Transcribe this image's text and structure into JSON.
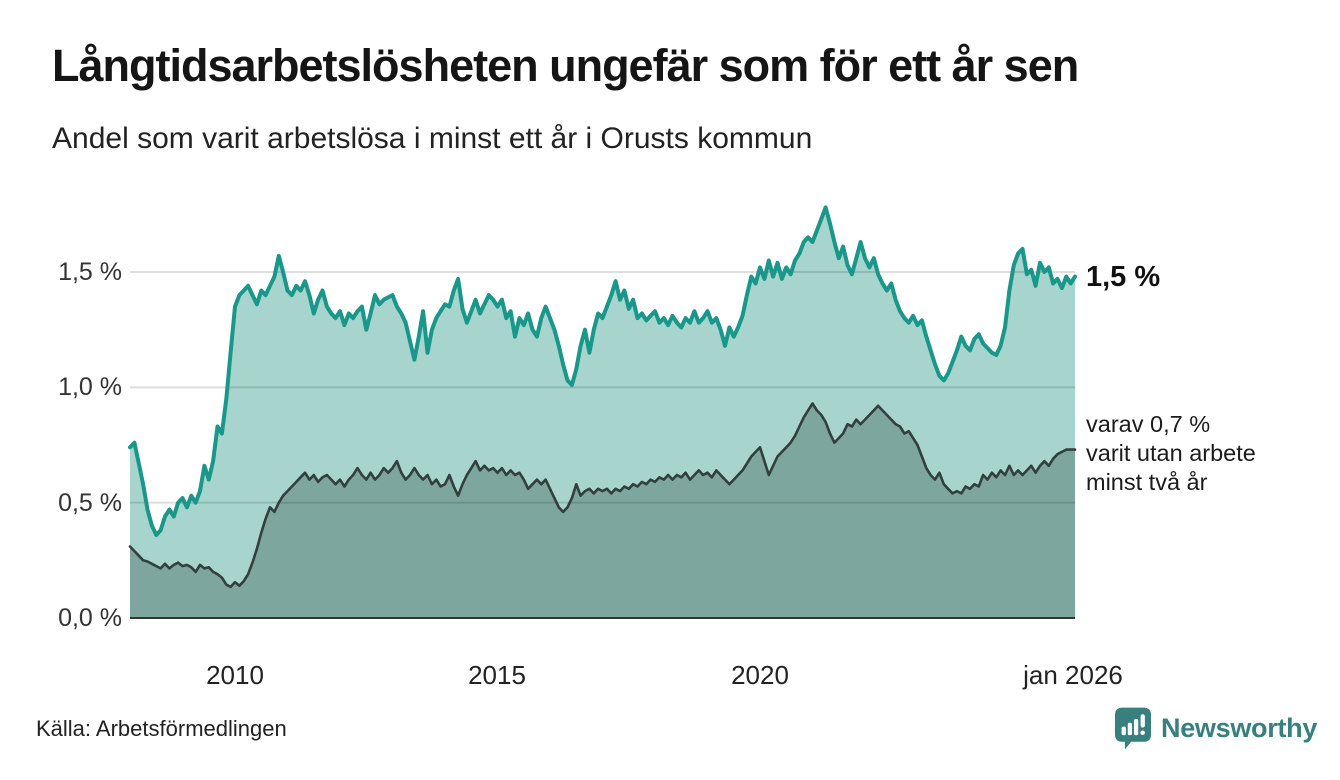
{
  "header": {
    "title": "Långtidsarbetslösheten ungefär som för ett år sen",
    "subtitle": "Andel som varit arbetslösa i minst ett år i Orusts kommun"
  },
  "annotations": {
    "latest_total": "1,5 %",
    "two_year_lines": [
      "varav 0,7 %",
      "varit utan arbete",
      "minst två år"
    ]
  },
  "footer": {
    "source": "Källa: Arbetsförmedlingen",
    "brand": "Newsworthy"
  },
  "colors": {
    "accent_teal_line": "#18978a",
    "area_light_fill": "#a7d5cd",
    "area_dark_fill": "#7da69e",
    "dark_line": "#333f3d",
    "gridline": "rgba(0,0,0,0.13)",
    "baseline": "#333333",
    "brand_teal": "#37807e"
  },
  "chart_data": {
    "type": "area",
    "title": "Långtidsarbetslösheten ungefär som för ett år sen",
    "subtitle": "Andel som varit arbetslösa i minst ett år i Orusts kommun",
    "x_unit": "month",
    "x_range": [
      "2008-01",
      "2026-01"
    ],
    "x_tick_labels": [
      "2010",
      "2015",
      "2020",
      "jan 2026"
    ],
    "y_ticks": [
      "0,0 %",
      "0,5 %",
      "1,0 %",
      "1,5 %"
    ],
    "y_tick_values": [
      0,
      0.5,
      1.0,
      1.5
    ],
    "ylim": [
      0,
      1.85
    ],
    "grid": true,
    "legend_position": "right-annotations",
    "series": [
      {
        "name": "Andel arbetslösa minst ett år",
        "color": "#18978a",
        "fill": "#a7d5cd",
        "latest_label": "1,5 %",
        "values": [
          0.74,
          0.76,
          0.67,
          0.58,
          0.47,
          0.4,
          0.36,
          0.38,
          0.44,
          0.47,
          0.44,
          0.5,
          0.52,
          0.48,
          0.53,
          0.5,
          0.55,
          0.66,
          0.6,
          0.68,
          0.83,
          0.8,
          0.95,
          1.15,
          1.35,
          1.4,
          1.42,
          1.44,
          1.4,
          1.36,
          1.42,
          1.4,
          1.44,
          1.48,
          1.57,
          1.5,
          1.42,
          1.4,
          1.44,
          1.42,
          1.46,
          1.4,
          1.32,
          1.38,
          1.42,
          1.35,
          1.32,
          1.3,
          1.33,
          1.27,
          1.32,
          1.3,
          1.33,
          1.35,
          1.25,
          1.32,
          1.4,
          1.36,
          1.38,
          1.39,
          1.4,
          1.35,
          1.32,
          1.28,
          1.2,
          1.12,
          1.22,
          1.33,
          1.15,
          1.25,
          1.3,
          1.33,
          1.36,
          1.35,
          1.42,
          1.47,
          1.34,
          1.28,
          1.33,
          1.38,
          1.32,
          1.36,
          1.4,
          1.38,
          1.35,
          1.38,
          1.3,
          1.33,
          1.22,
          1.3,
          1.27,
          1.32,
          1.25,
          1.22,
          1.3,
          1.35,
          1.3,
          1.25,
          1.18,
          1.1,
          1.03,
          1.01,
          1.08,
          1.18,
          1.25,
          1.15,
          1.25,
          1.32,
          1.3,
          1.35,
          1.4,
          1.46,
          1.38,
          1.42,
          1.34,
          1.38,
          1.3,
          1.32,
          1.29,
          1.31,
          1.33,
          1.28,
          1.3,
          1.27,
          1.31,
          1.28,
          1.26,
          1.3,
          1.28,
          1.33,
          1.28,
          1.3,
          1.33,
          1.28,
          1.3,
          1.25,
          1.18,
          1.26,
          1.22,
          1.26,
          1.31,
          1.4,
          1.48,
          1.45,
          1.52,
          1.47,
          1.55,
          1.48,
          1.54,
          1.47,
          1.52,
          1.49,
          1.55,
          1.58,
          1.63,
          1.65,
          1.63,
          1.68,
          1.73,
          1.78,
          1.71,
          1.63,
          1.56,
          1.61,
          1.53,
          1.49,
          1.56,
          1.63,
          1.56,
          1.52,
          1.56,
          1.49,
          1.45,
          1.42,
          1.45,
          1.38,
          1.33,
          1.3,
          1.28,
          1.31,
          1.27,
          1.29,
          1.22,
          1.16,
          1.1,
          1.05,
          1.03,
          1.06,
          1.11,
          1.16,
          1.22,
          1.18,
          1.16,
          1.21,
          1.23,
          1.19,
          1.17,
          1.15,
          1.14,
          1.18,
          1.26,
          1.42,
          1.53,
          1.58,
          1.6,
          1.49,
          1.51,
          1.44,
          1.54,
          1.5,
          1.52,
          1.45,
          1.47,
          1.43,
          1.48,
          1.45,
          1.48
        ]
      },
      {
        "name": "varav utan arbete minst två år",
        "color": "#333f3d",
        "fill": "#7da69e",
        "latest_label": "0,7 %",
        "values": [
          0.31,
          0.29,
          0.27,
          0.25,
          0.245,
          0.235,
          0.225,
          0.215,
          0.235,
          0.215,
          0.23,
          0.24,
          0.225,
          0.23,
          0.22,
          0.2,
          0.23,
          0.215,
          0.22,
          0.2,
          0.19,
          0.175,
          0.145,
          0.135,
          0.155,
          0.14,
          0.16,
          0.19,
          0.24,
          0.3,
          0.37,
          0.43,
          0.48,
          0.46,
          0.5,
          0.53,
          0.55,
          0.57,
          0.59,
          0.61,
          0.63,
          0.6,
          0.62,
          0.59,
          0.61,
          0.62,
          0.6,
          0.58,
          0.6,
          0.57,
          0.6,
          0.62,
          0.65,
          0.62,
          0.6,
          0.63,
          0.6,
          0.62,
          0.65,
          0.63,
          0.65,
          0.68,
          0.63,
          0.6,
          0.62,
          0.65,
          0.62,
          0.6,
          0.62,
          0.58,
          0.6,
          0.57,
          0.58,
          0.62,
          0.57,
          0.53,
          0.58,
          0.62,
          0.65,
          0.68,
          0.64,
          0.66,
          0.64,
          0.65,
          0.63,
          0.65,
          0.62,
          0.64,
          0.62,
          0.63,
          0.6,
          0.56,
          0.58,
          0.6,
          0.58,
          0.6,
          0.56,
          0.52,
          0.48,
          0.46,
          0.48,
          0.52,
          0.58,
          0.53,
          0.55,
          0.56,
          0.54,
          0.56,
          0.55,
          0.56,
          0.54,
          0.56,
          0.55,
          0.57,
          0.56,
          0.58,
          0.57,
          0.59,
          0.58,
          0.6,
          0.59,
          0.61,
          0.6,
          0.62,
          0.6,
          0.62,
          0.61,
          0.63,
          0.6,
          0.62,
          0.64,
          0.62,
          0.63,
          0.61,
          0.64,
          0.62,
          0.6,
          0.58,
          0.6,
          0.62,
          0.64,
          0.67,
          0.7,
          0.72,
          0.74,
          0.68,
          0.62,
          0.66,
          0.7,
          0.72,
          0.74,
          0.76,
          0.79,
          0.83,
          0.87,
          0.9,
          0.93,
          0.9,
          0.88,
          0.85,
          0.8,
          0.76,
          0.78,
          0.8,
          0.84,
          0.83,
          0.86,
          0.84,
          0.86,
          0.88,
          0.9,
          0.92,
          0.9,
          0.88,
          0.86,
          0.84,
          0.83,
          0.8,
          0.81,
          0.78,
          0.75,
          0.7,
          0.65,
          0.62,
          0.6,
          0.63,
          0.58,
          0.56,
          0.54,
          0.55,
          0.54,
          0.57,
          0.56,
          0.58,
          0.57,
          0.62,
          0.6,
          0.63,
          0.61,
          0.64,
          0.62,
          0.66,
          0.62,
          0.64,
          0.62,
          0.64,
          0.66,
          0.63,
          0.66,
          0.68,
          0.66,
          0.69,
          0.71,
          0.72,
          0.73,
          0.73,
          0.73
        ]
      }
    ]
  }
}
